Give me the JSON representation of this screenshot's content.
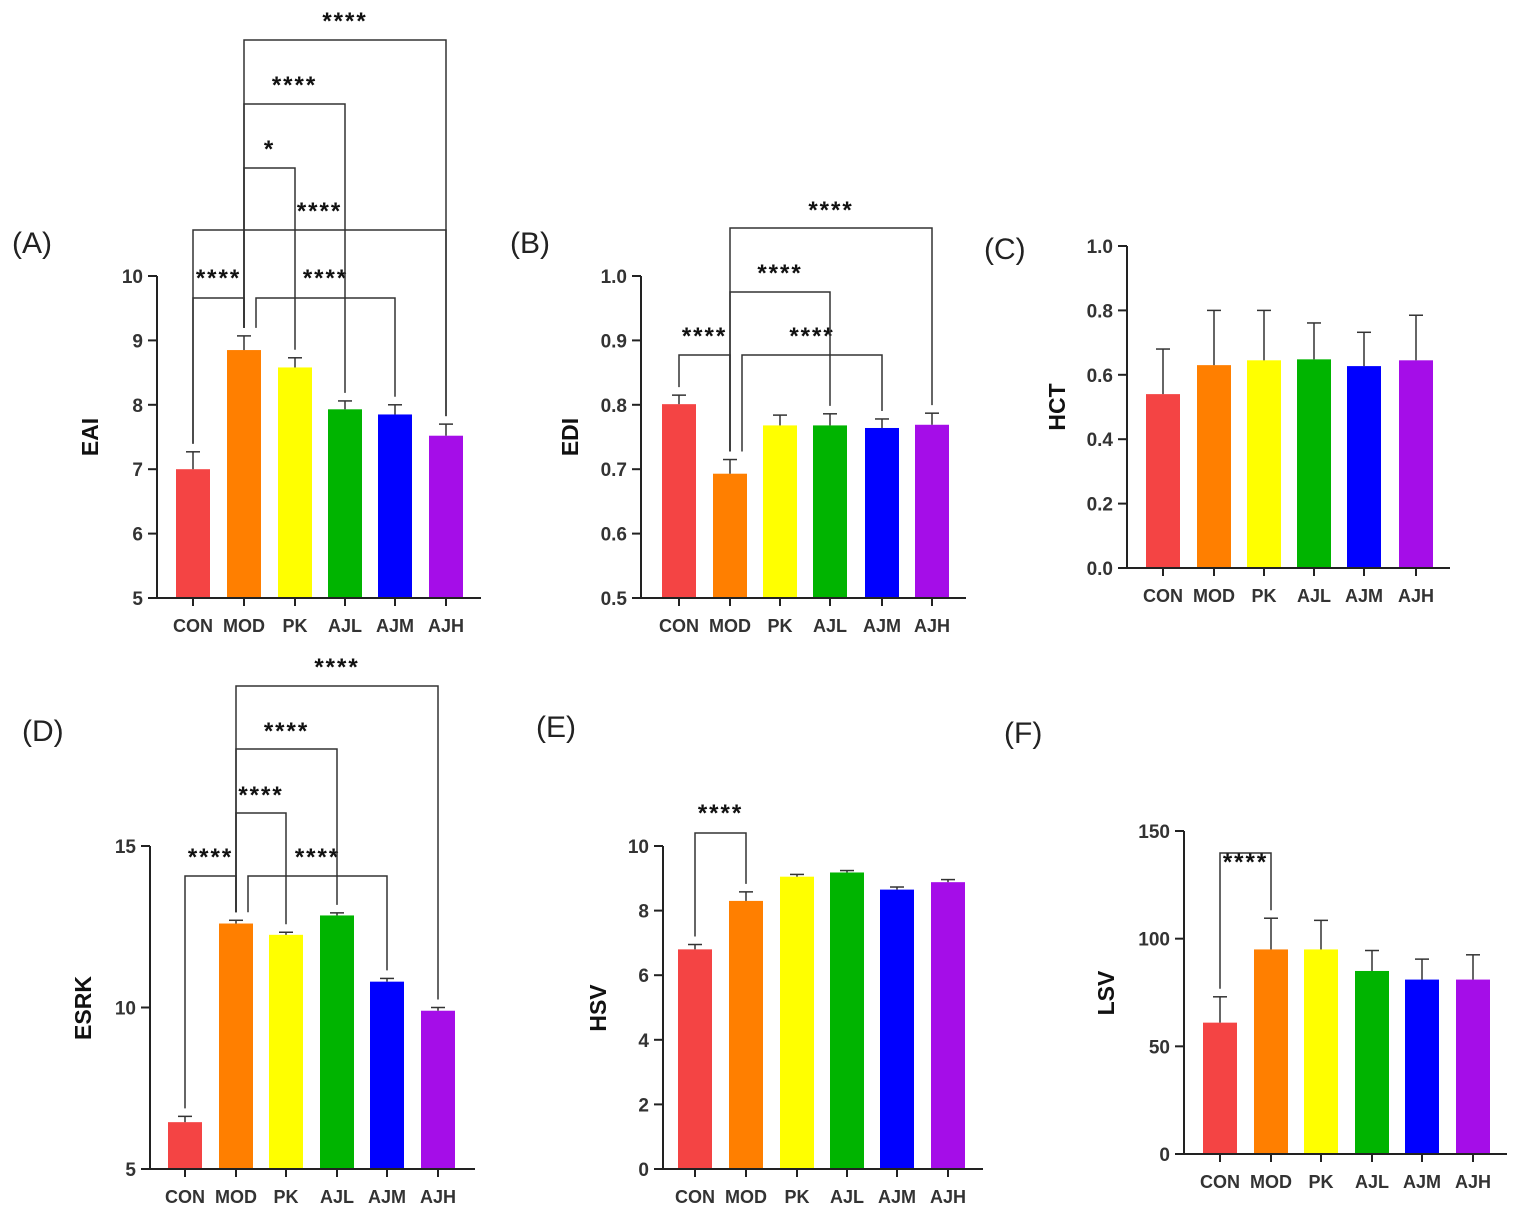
{
  "chart_data": [
    {
      "type": "bar",
      "panel": "(A)",
      "ylabel": "EAI",
      "categories": [
        "CON",
        "MOD",
        "PK",
        "AJL",
        "AJM",
        "AJH"
      ],
      "values": [
        7.0,
        8.85,
        8.58,
        7.93,
        7.85,
        7.52
      ],
      "errors": [
        0.27,
        0.22,
        0.15,
        0.13,
        0.15,
        0.18
      ],
      "ylim": [
        5,
        10
      ],
      "yticks": [
        "5",
        "6",
        "7",
        "8",
        "9",
        "10"
      ],
      "colors": [
        "#f44444",
        "#ff7f00",
        "#ffff00",
        "#00b400",
        "#0000ff",
        "#a50de8"
      ],
      "significance": [
        {
          "from": "CON",
          "to": "MOD",
          "label": "****"
        },
        {
          "from": "MOD",
          "to": "AJM",
          "label": "****"
        },
        {
          "from": "CON",
          "to": "AJH",
          "label": "****"
        },
        {
          "from": "MOD",
          "to": "PK",
          "label": "*"
        },
        {
          "from": "MOD",
          "to": "AJL",
          "label": "****"
        },
        {
          "from": "MOD",
          "to": "AJH",
          "label": "****"
        }
      ]
    },
    {
      "type": "bar",
      "panel": "(B)",
      "ylabel": "EDI",
      "categories": [
        "CON",
        "MOD",
        "PK",
        "AJL",
        "AJM",
        "AJH"
      ],
      "values": [
        0.801,
        0.693,
        0.768,
        0.768,
        0.764,
        0.769
      ],
      "errors": [
        0.014,
        0.022,
        0.016,
        0.018,
        0.014,
        0.018
      ],
      "ylim": [
        0.5,
        1.0
      ],
      "yticks": [
        "0.5",
        "0.6",
        "0.7",
        "0.8",
        "0.9",
        "1.0"
      ],
      "colors": [
        "#f44444",
        "#ff7f00",
        "#ffff00",
        "#00b400",
        "#0000ff",
        "#a50de8"
      ],
      "significance": [
        {
          "from": "CON",
          "to": "MOD",
          "label": "****"
        },
        {
          "from": "MOD",
          "to": "AJM",
          "label": "****"
        },
        {
          "from": "MOD",
          "to": "AJL",
          "label": "****"
        },
        {
          "from": "MOD",
          "to": "AJH",
          "label": "****"
        }
      ]
    },
    {
      "type": "bar",
      "panel": "(C)",
      "ylabel": "HCT",
      "categories": [
        "CON",
        "MOD",
        "PK",
        "AJL",
        "AJM",
        "AJH"
      ],
      "values": [
        0.54,
        0.63,
        0.645,
        0.648,
        0.627,
        0.645
      ],
      "errors": [
        0.14,
        0.17,
        0.155,
        0.113,
        0.105,
        0.14
      ],
      "ylim": [
        0.0,
        1.0
      ],
      "yticks": [
        "0.0",
        "0.2",
        "0.4",
        "0.6",
        "0.8",
        "1.0"
      ],
      "colors": [
        "#f44444",
        "#ff7f00",
        "#ffff00",
        "#00b400",
        "#0000ff",
        "#a50de8"
      ],
      "significance": []
    },
    {
      "type": "bar",
      "panel": "(D)",
      "ylabel": "ESRK",
      "categories": [
        "CON",
        "MOD",
        "PK",
        "AJL",
        "AJM",
        "AJH"
      ],
      "values": [
        6.45,
        12.6,
        12.25,
        12.85,
        10.8,
        9.9
      ],
      "errors": [
        0.18,
        0.1,
        0.08,
        0.08,
        0.1,
        0.1
      ],
      "ylim": [
        5,
        15
      ],
      "yticks": [
        "5",
        "10",
        "15"
      ],
      "colors": [
        "#f44444",
        "#ff7f00",
        "#ffff00",
        "#00b400",
        "#0000ff",
        "#a50de8"
      ],
      "significance": [
        {
          "from": "CON",
          "to": "MOD",
          "label": "****"
        },
        {
          "from": "MOD",
          "to": "AJM",
          "label": "****"
        },
        {
          "from": "MOD",
          "to": "PK",
          "label": "****"
        },
        {
          "from": "MOD",
          "to": "AJL",
          "label": "****"
        },
        {
          "from": "MOD",
          "to": "AJH",
          "label": "****"
        }
      ]
    },
    {
      "type": "bar",
      "panel": "(E)",
      "ylabel": "HSV",
      "categories": [
        "CON",
        "MOD",
        "PK",
        "AJL",
        "AJM",
        "AJH"
      ],
      "values": [
        6.8,
        8.3,
        9.05,
        9.18,
        8.65,
        8.88
      ],
      "errors": [
        0.15,
        0.28,
        0.07,
        0.06,
        0.08,
        0.08
      ],
      "ylim": [
        0,
        10
      ],
      "yticks": [
        "0",
        "2",
        "4",
        "6",
        "8",
        "10"
      ],
      "colors": [
        "#f44444",
        "#ff7f00",
        "#ffff00",
        "#00b400",
        "#0000ff",
        "#a50de8"
      ],
      "significance": [
        {
          "from": "CON",
          "to": "MOD",
          "label": "****"
        }
      ]
    },
    {
      "type": "bar",
      "panel": "(F)",
      "ylabel": "LSV",
      "categories": [
        "CON",
        "MOD",
        "PK",
        "AJL",
        "AJM",
        "AJH"
      ],
      "values": [
        61,
        95,
        95,
        85,
        81,
        81
      ],
      "errors": [
        12,
        14.5,
        13.5,
        9.5,
        9.5,
        11.5
      ],
      "ylim": [
        0,
        150
      ],
      "yticks": [
        "0",
        "50",
        "100",
        "150"
      ],
      "colors": [
        "#f44444",
        "#ff7f00",
        "#ffff00",
        "#00b400",
        "#0000ff",
        "#a50de8"
      ],
      "significance": [
        {
          "from": "CON",
          "to": "MOD",
          "label": "****"
        }
      ]
    }
  ]
}
